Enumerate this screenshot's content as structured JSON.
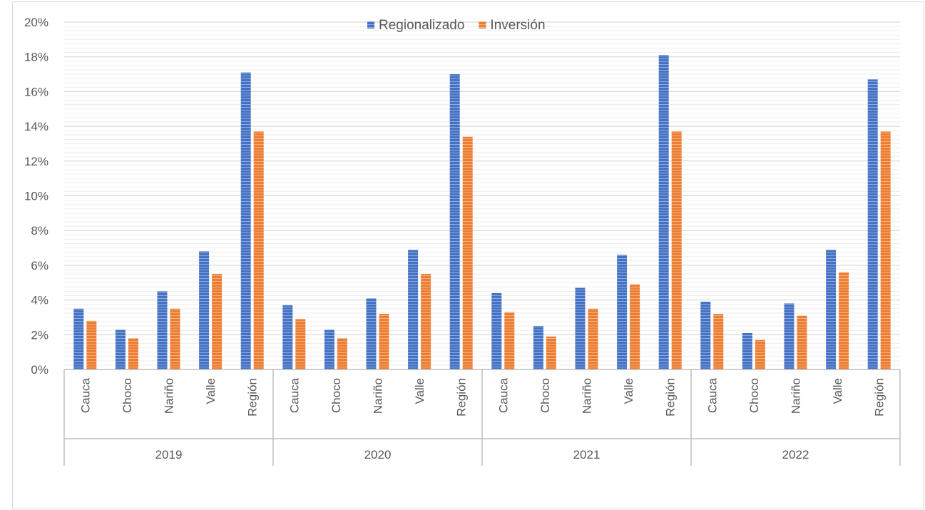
{
  "chart_data": {
    "type": "bar",
    "title": "",
    "xlabel": "",
    "ylabel": "",
    "ylim": [
      0,
      20
    ],
    "y_ticks": [
      "0%",
      "2%",
      "4%",
      "6%",
      "8%",
      "10%",
      "12%",
      "14%",
      "16%",
      "18%",
      "20%"
    ],
    "y_tick_values": [
      0,
      2,
      4,
      6,
      8,
      10,
      12,
      14,
      16,
      18,
      20
    ],
    "grid": true,
    "legend_position": "top-center",
    "groups": [
      "2019",
      "2020",
      "2021",
      "2022"
    ],
    "categories": [
      "Cauca",
      "Choco",
      "Nariño",
      "Valle",
      "Región"
    ],
    "series": [
      {
        "name": "Regionalizado",
        "color": "#4472c4",
        "values": [
          [
            3.5,
            2.3,
            4.5,
            6.8,
            17.1
          ],
          [
            3.7,
            2.3,
            4.1,
            6.9,
            17.0
          ],
          [
            4.4,
            2.5,
            4.7,
            6.6,
            18.1
          ],
          [
            3.9,
            2.1,
            3.8,
            6.9,
            16.7
          ]
        ]
      },
      {
        "name": "Inversión",
        "color": "#ed7d31",
        "values": [
          [
            2.8,
            1.8,
            3.5,
            5.5,
            13.7
          ],
          [
            2.9,
            1.8,
            3.2,
            5.5,
            13.4
          ],
          [
            3.3,
            1.9,
            3.5,
            4.9,
            13.7
          ],
          [
            3.2,
            1.7,
            3.1,
            5.6,
            13.7
          ]
        ]
      }
    ]
  }
}
